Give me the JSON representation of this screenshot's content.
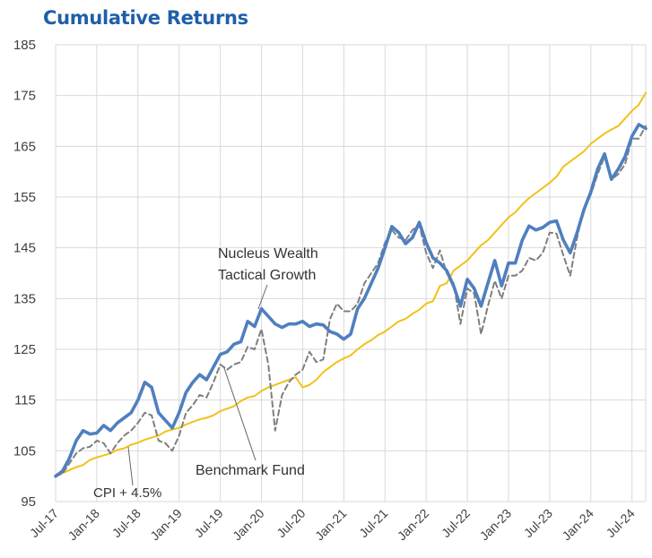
{
  "chart_data": {
    "type": "line",
    "title": "Cumulative Returns",
    "xlabel": "",
    "ylabel": "",
    "ylim": [
      95,
      185
    ],
    "yticks": [
      95,
      105,
      115,
      125,
      135,
      145,
      155,
      165,
      175,
      185
    ],
    "xticks": [
      "Jul-17",
      "Jan-18",
      "Jul-18",
      "Jan-19",
      "Jul-19",
      "Jan-20",
      "Jul-20",
      "Jan-21",
      "Jul-21",
      "Jan-22",
      "Jul-22",
      "Jan-23",
      "Jul-23",
      "Jan-24",
      "Jul-24"
    ],
    "grid": true,
    "legend": "none (inline annotations)",
    "series": [
      {
        "name": "Nucleus Wealth Tactical Growth",
        "color": "#4f7fbf",
        "style": "solid-thick",
        "points": [
          [
            0,
            100
          ],
          [
            1,
            101
          ],
          [
            2,
            103.5
          ],
          [
            3,
            107
          ],
          [
            4,
            109
          ],
          [
            5,
            108.3
          ],
          [
            6,
            108.5
          ],
          [
            7,
            110
          ],
          [
            8,
            109
          ],
          [
            9,
            110.5
          ],
          [
            10,
            111.5
          ],
          [
            11,
            112.5
          ],
          [
            12,
            115
          ],
          [
            13,
            118.5
          ],
          [
            14,
            117.5
          ],
          [
            15,
            112.5
          ],
          [
            16,
            111
          ],
          [
            17,
            109.5
          ],
          [
            18,
            112.5
          ],
          [
            19,
            116.5
          ],
          [
            20,
            118.5
          ],
          [
            21,
            120
          ],
          [
            22,
            119
          ],
          [
            23,
            121.5
          ],
          [
            24,
            124
          ],
          [
            25,
            124.5
          ],
          [
            26,
            126
          ],
          [
            27,
            126.5
          ],
          [
            28,
            130.5
          ],
          [
            29,
            129.5
          ],
          [
            30,
            133
          ],
          [
            31,
            131.5
          ],
          [
            32,
            130
          ],
          [
            33,
            129.3
          ],
          [
            34,
            130
          ],
          [
            35,
            130
          ],
          [
            36,
            130.5
          ],
          [
            37,
            129.5
          ],
          [
            38,
            130
          ],
          [
            39,
            129.8
          ],
          [
            40,
            128.5
          ],
          [
            41,
            128
          ],
          [
            42,
            127
          ],
          [
            43,
            128
          ],
          [
            44,
            133
          ],
          [
            45,
            135
          ],
          [
            46,
            138
          ],
          [
            47,
            141
          ],
          [
            48,
            145
          ],
          [
            49,
            149.2
          ],
          [
            50,
            148
          ],
          [
            51,
            145.8
          ],
          [
            52,
            147
          ],
          [
            53,
            150
          ],
          [
            54,
            146
          ],
          [
            55,
            143
          ],
          [
            56,
            142
          ],
          [
            57,
            140.5
          ],
          [
            58,
            137.5
          ],
          [
            59,
            133.5
          ],
          [
            60,
            138.8
          ],
          [
            61,
            137
          ],
          [
            62,
            133.5
          ],
          [
            63,
            138
          ],
          [
            64,
            142.5
          ],
          [
            65,
            137.5
          ],
          [
            66,
            142
          ],
          [
            67,
            142
          ],
          [
            68,
            146.5
          ],
          [
            69,
            149.3
          ],
          [
            70,
            148.5
          ],
          [
            71,
            149
          ],
          [
            72,
            150
          ],
          [
            73,
            150.3
          ],
          [
            74,
            146.5
          ],
          [
            75,
            144
          ],
          [
            76,
            148
          ],
          [
            77,
            152.5
          ],
          [
            78,
            156
          ],
          [
            79,
            160.5
          ],
          [
            80,
            163.5
          ],
          [
            81,
            158.5
          ],
          [
            82,
            160.5
          ],
          [
            83,
            163
          ],
          [
            84,
            167
          ],
          [
            85,
            169.3
          ],
          [
            86,
            168.5
          ]
        ]
      },
      {
        "name": "Benchmark Fund",
        "color": "#7f7f7f",
        "style": "dashed",
        "points": [
          [
            0,
            100
          ],
          [
            1,
            100.5
          ],
          [
            2,
            102.5
          ],
          [
            3,
            104.5
          ],
          [
            4,
            105.5
          ],
          [
            5,
            105.8
          ],
          [
            6,
            107
          ],
          [
            7,
            106.5
          ],
          [
            8,
            104.5
          ],
          [
            9,
            106.5
          ],
          [
            10,
            108
          ],
          [
            11,
            109
          ],
          [
            12,
            110.5
          ],
          [
            13,
            112.5
          ],
          [
            14,
            112
          ],
          [
            15,
            107
          ],
          [
            16,
            106.5
          ],
          [
            17,
            105
          ],
          [
            18,
            108
          ],
          [
            19,
            112.5
          ],
          [
            20,
            114
          ],
          [
            21,
            116
          ],
          [
            22,
            115.5
          ],
          [
            23,
            118.5
          ],
          [
            24,
            122
          ],
          [
            25,
            121
          ],
          [
            26,
            122
          ],
          [
            27,
            122.5
          ],
          [
            28,
            125.5
          ],
          [
            29,
            125
          ],
          [
            30,
            129
          ],
          [
            31,
            122
          ],
          [
            32,
            109
          ],
          [
            33,
            116
          ],
          [
            34,
            118.5
          ],
          [
            35,
            120
          ],
          [
            36,
            121
          ],
          [
            37,
            124.5
          ],
          [
            38,
            122.5
          ],
          [
            39,
            123
          ],
          [
            40,
            131
          ],
          [
            41,
            134
          ],
          [
            42,
            132.5
          ],
          [
            43,
            132.5
          ],
          [
            44,
            134
          ],
          [
            45,
            138
          ],
          [
            46,
            140
          ],
          [
            47,
            142
          ],
          [
            48,
            146
          ],
          [
            49,
            148.5
          ],
          [
            50,
            147
          ],
          [
            51,
            146.5
          ],
          [
            52,
            148.5
          ],
          [
            53,
            149.5
          ],
          [
            54,
            144
          ],
          [
            55,
            141
          ],
          [
            56,
            144.5
          ],
          [
            57,
            140
          ],
          [
            58,
            138
          ],
          [
            59,
            130
          ],
          [
            60,
            137
          ],
          [
            61,
            136
          ],
          [
            62,
            128
          ],
          [
            63,
            133.5
          ],
          [
            64,
            138.5
          ],
          [
            65,
            135
          ],
          [
            66,
            139.5
          ],
          [
            67,
            139.5
          ],
          [
            68,
            140.5
          ],
          [
            69,
            143
          ],
          [
            70,
            142.5
          ],
          [
            71,
            144
          ],
          [
            72,
            148
          ],
          [
            73,
            147.8
          ],
          [
            74,
            143.5
          ],
          [
            75,
            139.5
          ],
          [
            76,
            147
          ],
          [
            77,
            153
          ],
          [
            78,
            155.5
          ],
          [
            79,
            159.5
          ],
          [
            80,
            163
          ],
          [
            81,
            158.5
          ],
          [
            82,
            159.5
          ],
          [
            83,
            161.5
          ],
          [
            84,
            166.5
          ],
          [
            85,
            166.5
          ],
          [
            86,
            169
          ]
        ]
      },
      {
        "name": "CPI + 4.5%",
        "color": "#f2c119",
        "style": "solid",
        "points": [
          [
            0,
            100
          ],
          [
            1,
            100.6
          ],
          [
            2,
            101.2
          ],
          [
            3,
            101.8
          ],
          [
            4,
            102.2
          ],
          [
            5,
            103.2
          ],
          [
            6,
            103.7
          ],
          [
            7,
            104.1
          ],
          [
            8,
            104.5
          ],
          [
            9,
            105.2
          ],
          [
            10,
            105.5
          ],
          [
            11,
            106.2
          ],
          [
            12,
            106.6
          ],
          [
            13,
            107.2
          ],
          [
            14,
            107.6
          ],
          [
            15,
            108
          ],
          [
            16,
            108.8
          ],
          [
            17,
            109.2
          ],
          [
            18,
            109.5
          ],
          [
            19,
            110.2
          ],
          [
            20,
            110.7
          ],
          [
            21,
            111.2
          ],
          [
            22,
            111.5
          ],
          [
            23,
            112
          ],
          [
            24,
            112.8
          ],
          [
            25,
            113.3
          ],
          [
            26,
            113.8
          ],
          [
            27,
            114.8
          ],
          [
            28,
            115.5
          ],
          [
            29,
            115.8
          ],
          [
            30,
            116.8
          ],
          [
            31,
            117.5
          ],
          [
            32,
            118
          ],
          [
            33,
            118.5
          ],
          [
            34,
            119
          ],
          [
            35,
            119.5
          ],
          [
            36,
            117.5
          ],
          [
            37,
            118
          ],
          [
            38,
            119
          ],
          [
            39,
            120.5
          ],
          [
            40,
            121.5
          ],
          [
            41,
            122.5
          ],
          [
            42,
            123.2
          ],
          [
            43,
            123.8
          ],
          [
            44,
            125
          ],
          [
            45,
            126
          ],
          [
            46,
            126.8
          ],
          [
            47,
            127.8
          ],
          [
            48,
            128.5
          ],
          [
            49,
            129.5
          ],
          [
            50,
            130.5
          ],
          [
            51,
            131
          ],
          [
            52,
            132
          ],
          [
            53,
            132.8
          ],
          [
            54,
            134
          ],
          [
            55,
            134.5
          ],
          [
            56,
            137.5
          ],
          [
            57,
            138
          ],
          [
            58,
            140.5
          ],
          [
            59,
            141.5
          ],
          [
            60,
            142.5
          ],
          [
            61,
            144
          ],
          [
            62,
            145.5
          ],
          [
            63,
            146.5
          ],
          [
            64,
            148
          ],
          [
            65,
            149.5
          ],
          [
            66,
            151
          ],
          [
            67,
            152
          ],
          [
            68,
            153.5
          ],
          [
            69,
            154.8
          ],
          [
            70,
            155.8
          ],
          [
            71,
            156.8
          ],
          [
            72,
            157.8
          ],
          [
            73,
            159
          ],
          [
            74,
            161
          ],
          [
            75,
            162
          ],
          [
            76,
            163
          ],
          [
            77,
            164
          ],
          [
            78,
            165.5
          ],
          [
            79,
            166.5
          ],
          [
            80,
            167.5
          ],
          [
            81,
            168.3
          ],
          [
            82,
            169
          ],
          [
            83,
            170.5
          ],
          [
            84,
            172
          ],
          [
            85,
            173.2
          ],
          [
            86,
            175.5
          ]
        ]
      }
    ],
    "annotations": [
      {
        "text_lines": [
          "Nucleus Wealth",
          "Tactical Growth"
        ]
      },
      {
        "text_lines": [
          "Benchmark Fund"
        ]
      },
      {
        "text_lines": [
          "CPI + 4.5%"
        ]
      }
    ]
  }
}
